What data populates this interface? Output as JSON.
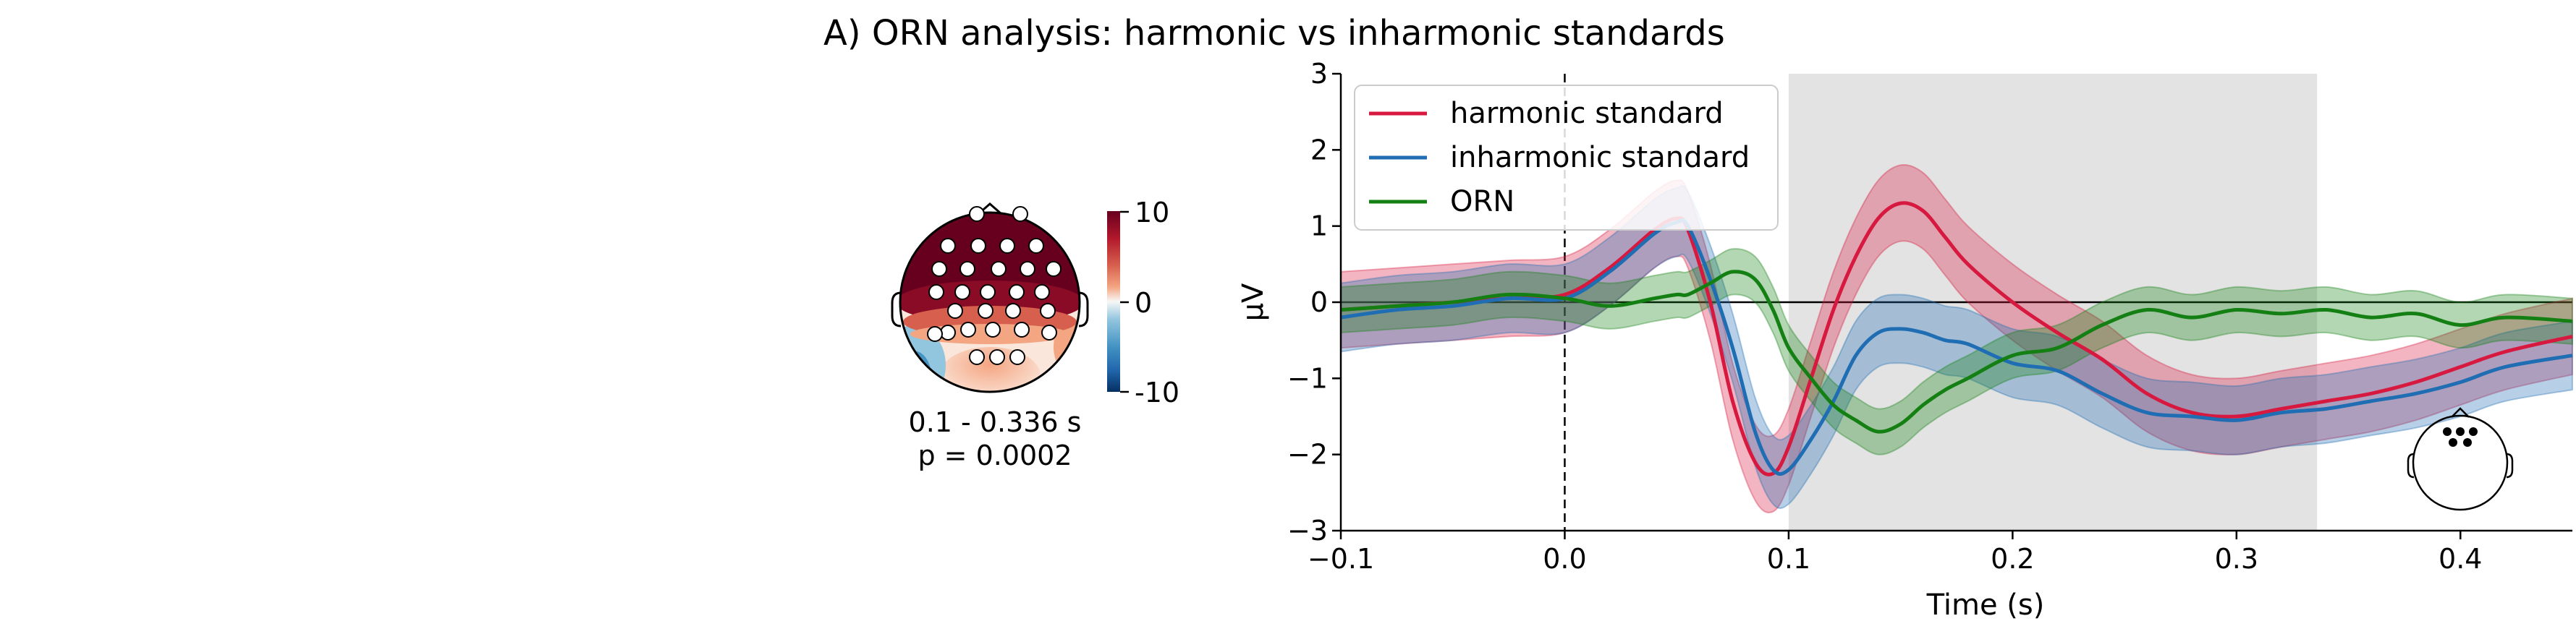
{
  "figure": {
    "title": "A) ORN analysis: harmonic vs inharmonic standards"
  },
  "topomap": {
    "time_window": "0.1 - 0.336 s",
    "p_value": "p = 0.0002",
    "colorbar_ticks": [
      "10",
      "0",
      "-10"
    ],
    "colormap": [
      "#053061",
      "#2166ac",
      "#4393c3",
      "#92c5de",
      "#f7f7f7",
      "#f4a582",
      "#d6604d",
      "#b2182b",
      "#67001f"
    ]
  },
  "chart_data": {
    "type": "line",
    "title": "",
    "xlabel": "Time (s)",
    "ylabel": "µV",
    "xlim": [
      -0.1,
      0.45
    ],
    "ylim": [
      -3,
      3
    ],
    "xticks": [
      -0.1,
      0.0,
      0.1,
      0.2,
      0.3,
      0.4
    ],
    "xtick_labels": [
      "−0.1",
      "0.0",
      "0.1",
      "0.2",
      "0.3",
      "0.4"
    ],
    "yticks": [
      3,
      2,
      1,
      0,
      -1,
      -2,
      -3
    ],
    "ytick_labels": [
      "3",
      "2",
      "1",
      "0",
      "−1",
      "−2",
      "−3"
    ],
    "legend_position": "top-left",
    "grid": false,
    "significant_window": [
      0.1,
      0.336
    ],
    "significant_window_color": "#d9d9d9",
    "stimulus_onset": 0.0,
    "x": [
      -0.1,
      -0.075,
      -0.05,
      -0.025,
      0.0,
      0.02,
      0.04,
      0.05,
      0.055,
      0.065,
      0.075,
      0.085,
      0.093,
      0.1,
      0.11,
      0.12,
      0.13,
      0.14,
      0.15,
      0.16,
      0.17,
      0.18,
      0.2,
      0.22,
      0.24,
      0.26,
      0.28,
      0.3,
      0.32,
      0.34,
      0.36,
      0.38,
      0.4,
      0.42,
      0.45
    ],
    "series": [
      {
        "name": "harmonic standard",
        "color": "#d7193f",
        "values": [
          -0.1,
          -0.05,
          0.0,
          0.05,
          0.1,
          0.45,
          0.95,
          1.1,
          0.95,
          0.0,
          -1.3,
          -2.1,
          -2.25,
          -1.9,
          -1.0,
          -0.1,
          0.6,
          1.1,
          1.3,
          1.2,
          0.85,
          0.5,
          0.0,
          -0.4,
          -0.75,
          -1.2,
          -1.45,
          -1.5,
          -1.4,
          -1.3,
          -1.2,
          -1.05,
          -0.85,
          -0.65,
          -0.45
        ],
        "band_halfwidth": 0.5
      },
      {
        "name": "inharmonic standard",
        "color": "#1f6db3",
        "values": [
          -0.2,
          -0.1,
          -0.05,
          0.05,
          0.05,
          0.4,
          0.9,
          1.05,
          1.0,
          0.3,
          -0.6,
          -1.7,
          -2.2,
          -2.2,
          -1.8,
          -1.3,
          -0.7,
          -0.4,
          -0.35,
          -0.4,
          -0.5,
          -0.55,
          -0.8,
          -0.9,
          -1.2,
          -1.45,
          -1.5,
          -1.55,
          -1.45,
          -1.4,
          -1.3,
          -1.2,
          -1.05,
          -0.85,
          -0.7
        ],
        "band_halfwidth": 0.45
      },
      {
        "name": "ORN",
        "color": "#148014",
        "values": [
          -0.1,
          -0.05,
          0.0,
          0.1,
          0.05,
          -0.05,
          0.05,
          0.1,
          0.1,
          0.25,
          0.4,
          0.3,
          -0.1,
          -0.6,
          -1.0,
          -1.35,
          -1.55,
          -1.7,
          -1.6,
          -1.35,
          -1.15,
          -1.0,
          -0.7,
          -0.6,
          -0.3,
          -0.1,
          -0.2,
          -0.1,
          -0.15,
          -0.1,
          -0.2,
          -0.15,
          -0.3,
          -0.2,
          -0.25
        ],
        "band_halfwidth": 0.3
      }
    ]
  }
}
